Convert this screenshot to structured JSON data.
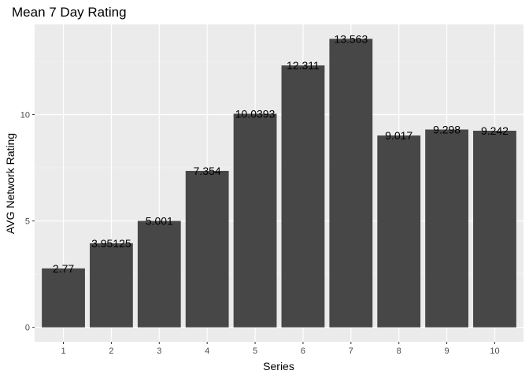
{
  "chart_data": {
    "type": "bar",
    "title": "Mean 7 Day Rating",
    "xlabel": "Series",
    "ylabel": "AVG Network Rating",
    "categories": [
      "1",
      "2",
      "3",
      "4",
      "5",
      "6",
      "7",
      "8",
      "9",
      "10"
    ],
    "values": [
      2.77,
      3.95125,
      5.001,
      7.354,
      10.0393,
      12.311,
      13.563,
      9.017,
      9.298,
      9.242
    ],
    "value_labels": [
      "2.77",
      "3.95125",
      "5.001",
      "7.354",
      "10.0393",
      "12.311",
      "13.563",
      "9.017",
      "9.298",
      "9.242"
    ],
    "yticks": [
      0,
      5,
      10
    ],
    "ytick_labels": [
      "0",
      "5",
      "10"
    ],
    "ylim": [
      -0.68,
      14.24
    ],
    "grid": true,
    "legend": "none",
    "colors": {
      "bar": "#474747",
      "panel": "#ebebeb",
      "grid_major": "#ffffff",
      "grid_minor": "#f5f5f5",
      "tick_label": "#4d4d4d",
      "tick_mark": "#333333"
    }
  }
}
